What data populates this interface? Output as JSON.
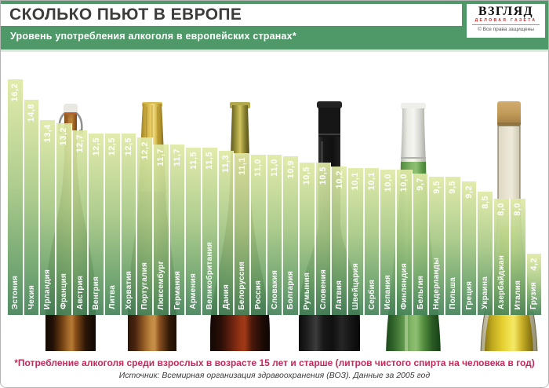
{
  "header": {
    "title": "СКОЛЬКО ПЬЮТ В ЕВРОПЕ",
    "subtitle": "Уровень употребления алкоголя в европейских странах*",
    "logo": {
      "name": "ВЗГЛЯД",
      "tagline": "ДЕЛОВАЯ ГАЗЕТА",
      "copyright": "© Все права защищены"
    }
  },
  "chart_data": {
    "type": "bar",
    "title": "СКОЛЬКО ПЬЮТ В ЕВРОПЕ",
    "subtitle": "Уровень употребления алкоголя в европейских странах*",
    "unit": "литров чистого спирта на человека в год",
    "ylim": [
      0,
      16.2
    ],
    "orientation": "vertical",
    "decimal_separator": ",",
    "categories": [
      "Эстония",
      "Чехия",
      "Ирландия",
      "Франция",
      "Австрия",
      "Венгрия",
      "Литва",
      "Хорватия",
      "Португалия",
      "Люксембург",
      "Германия",
      "Армения",
      "Великобритания",
      "Дания",
      "Белоруссия",
      "Россия",
      "Словакия",
      "Болгария",
      "Румыния",
      "Словения",
      "Латвия",
      "Швейцария",
      "Сербия",
      "Испания",
      "Финляндия",
      "Бельгия",
      "Нидерланды",
      "Польша",
      "Греция",
      "Украина",
      "Азербайджан",
      "Италия",
      "Грузия"
    ],
    "values": [
      16.2,
      14.8,
      13.4,
      13.2,
      12.7,
      12.5,
      12.5,
      12.5,
      12.2,
      11.7,
      11.7,
      11.5,
      11.5,
      11.3,
      11.1,
      11.0,
      11.0,
      10.9,
      10.5,
      10.5,
      10.2,
      10.1,
      10.1,
      10.0,
      10.0,
      9.7,
      9.5,
      9.5,
      9.2,
      8.5,
      8.0,
      8.0,
      4.2
    ],
    "bar_gradient_top": "#e0eaa6",
    "bar_gradient_bottom": "#46835a",
    "background_bottles": [
      "swing-top beer bottle",
      "foil-top beer bottle",
      "cognac bottle",
      "red wine bottle",
      "white wine bottle",
      "olive oil bottle"
    ]
  },
  "footer": {
    "note": "*Потребление алкоголя среди взрослых в возрасте 15 лет и старше (литров чистого спирта на человека в год)",
    "source": "Источник: Всемирная организация здравоохранения (ВОЗ). Данные за 2005 год"
  },
  "colors": {
    "header_green": "#4f9868",
    "note_red": "#c5295a"
  }
}
